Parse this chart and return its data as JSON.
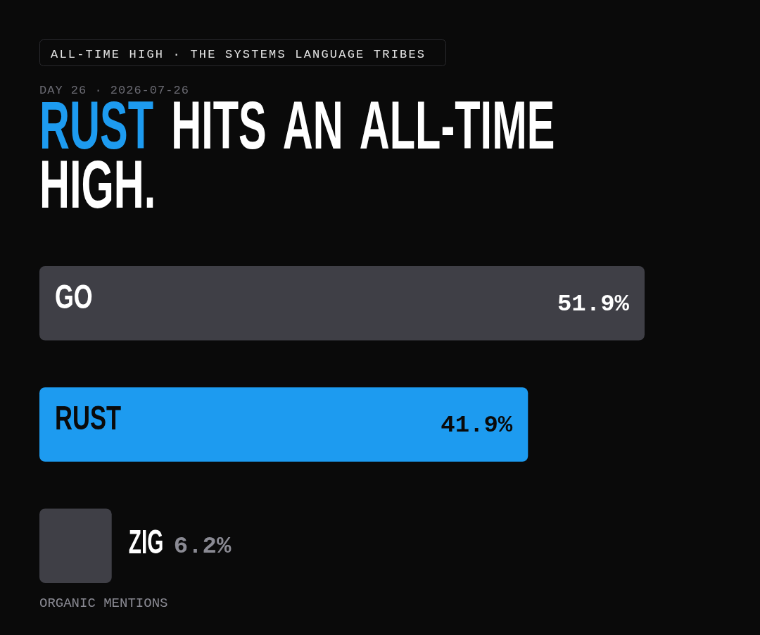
{
  "chart_data": {
    "type": "bar",
    "orientation": "horizontal",
    "title": "RUST HITS AN ALL-TIME HIGH.",
    "subtitle": "DAY 26 · 2026-07-26",
    "annotations": [
      "ALL-TIME HIGH · THE SYSTEMS LANGUAGE TRIBES",
      "ORGANIC MENTIONS"
    ],
    "categories": [
      "GO",
      "RUST",
      "ZIG"
    ],
    "values": [
      51.9,
      41.9,
      6.2
    ],
    "colors": [
      "#3f3f46",
      "#1d9bf0",
      "#3f3f46"
    ],
    "value_labels": [
      "51.9%",
      "41.9%",
      "6.2%"
    ]
  }
}
